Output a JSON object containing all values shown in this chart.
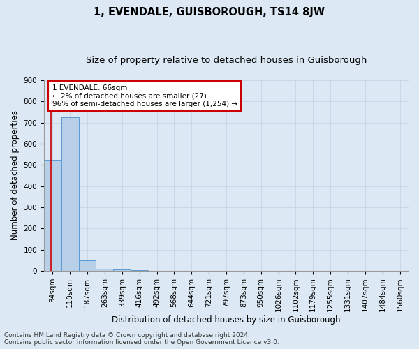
{
  "title": "1, EVENDALE, GUISBOROUGH, TS14 8JW",
  "subtitle": "Size of property relative to detached houses in Guisborough",
  "xlabel": "Distribution of detached houses by size in Guisborough",
  "ylabel": "Number of detached properties",
  "footnote1": "Contains HM Land Registry data © Crown copyright and database right 2024.",
  "footnote2": "Contains public sector information licensed under the Open Government Licence v3.0.",
  "annotation_line1": "1 EVENDALE: 66sqm",
  "annotation_line2": "← 2% of detached houses are smaller (27)",
  "annotation_line3": "96% of semi-detached houses are larger (1,254) →",
  "bar_labels": [
    "34sqm",
    "110sqm",
    "187sqm",
    "263sqm",
    "339sqm",
    "416sqm",
    "492sqm",
    "568sqm",
    "644sqm",
    "721sqm",
    "797sqm",
    "873sqm",
    "950sqm",
    "1026sqm",
    "1102sqm",
    "1179sqm",
    "1255sqm",
    "1331sqm",
    "1407sqm",
    "1484sqm",
    "1560sqm"
  ],
  "bar_values": [
    524,
    726,
    48,
    10,
    6,
    2,
    1,
    0,
    0,
    0,
    0,
    0,
    0,
    0,
    0,
    0,
    0,
    0,
    0,
    0,
    0
  ],
  "bar_color": "#b8cfe8",
  "bar_edge_color": "#5b9bd5",
  "ylim": [
    0,
    900
  ],
  "yticks": [
    0,
    100,
    200,
    300,
    400,
    500,
    600,
    700,
    800,
    900
  ],
  "grid_color": "#c8d8e8",
  "bg_color": "#dce9f5",
  "annotation_box_color": "#ffffff",
  "annotation_box_edge": "#cc0000",
  "marker_line_color": "#cc0000",
  "title_fontsize": 10.5,
  "subtitle_fontsize": 9.5,
  "axis_label_fontsize": 8.5,
  "tick_fontsize": 7.5,
  "annotation_fontsize": 7.5,
  "footnote_fontsize": 6.5
}
